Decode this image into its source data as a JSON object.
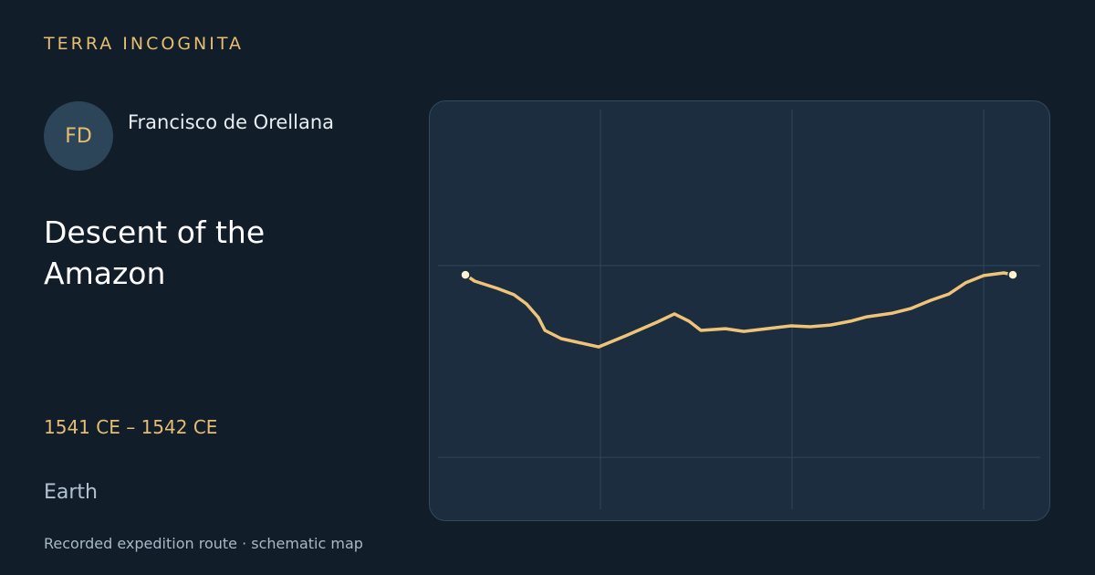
{
  "header": {
    "brand": "TERRA INCOGNITA"
  },
  "explorer": {
    "initials": "FD",
    "name": "Francisco de Orellana"
  },
  "expedition": {
    "title": "Descent of the Amazon",
    "dates": "1541 CE – 1542 CE",
    "body": "Earth"
  },
  "footer": {
    "note": "Recorded expedition route · schematic map"
  },
  "map": {
    "lon_range": [
      -78.48,
      -47.05
    ],
    "lat_range": [
      -12.71,
      8.14
    ],
    "grid_lons": [
      -70,
      -60,
      -50
    ],
    "grid_lats": [
      0,
      -10
    ],
    "route_color": "#f0c478",
    "route_lon": [
      -77.05,
      -76.57,
      -75.38,
      -74.52,
      -73.86,
      -73.24,
      -72.9,
      -72.05,
      -70.1,
      -68.71,
      -67.05,
      -66.14,
      -65.38,
      -64.76,
      -63.48,
      -62.52,
      -60.05,
      -59.05,
      -58.0,
      -56.95,
      -56.1,
      -54.76,
      -53.81,
      -52.76,
      -51.81,
      -50.95,
      -50.0,
      -48.95,
      -48.48
    ],
    "route_lat": [
      -0.48,
      -0.81,
      -1.19,
      -1.52,
      -2.0,
      -2.71,
      -3.38,
      -3.81,
      -4.24,
      -3.67,
      -2.95,
      -2.52,
      -2.9,
      -3.38,
      -3.29,
      -3.43,
      -3.14,
      -3.19,
      -3.1,
      -2.9,
      -2.67,
      -2.48,
      -2.24,
      -1.81,
      -1.48,
      -0.9,
      -0.52,
      -0.38,
      -0.48
    ]
  }
}
